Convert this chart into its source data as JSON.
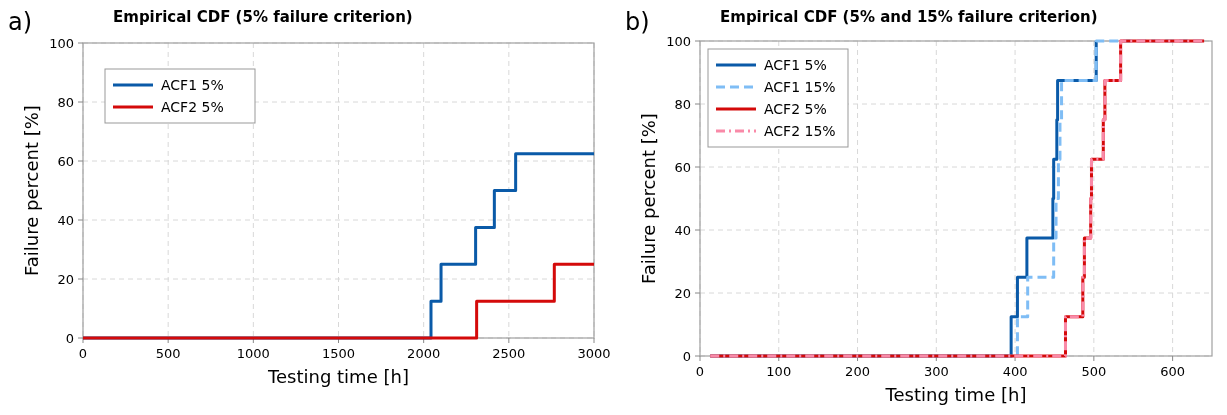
{
  "chart_data": [
    {
      "type": "step",
      "title": "Empirical CDF (5% failure criterion)",
      "xlabel": "Testing time [h]",
      "ylabel": "Failure percent [%]",
      "annotations": [
        "a)"
      ],
      "xlim": [
        0,
        3000
      ],
      "xticks": [
        0,
        500,
        1000,
        1500,
        2000,
        2500,
        3000
      ],
      "ylim": [
        0,
        100
      ],
      "yticks": [
        0,
        20,
        40,
        60,
        80,
        100
      ],
      "grid": true,
      "legend": "top left",
      "marker": "none",
      "series": [
        {
          "name": "ACF1 5%",
          "color": "#0a5aa8",
          "line_style": "solid",
          "x": [
            0,
            2043,
            2102,
            2305,
            2415,
            2540,
            3000
          ],
          "values": [
            0,
            12.5,
            25,
            37.5,
            50,
            62.5,
            62.5
          ]
        },
        {
          "name": "ACF2 5%",
          "color": "#d40a0a",
          "line_style": "solid",
          "x": [
            0,
            2311,
            2767,
            3000
          ],
          "values": [
            0,
            12.5,
            25,
            25
          ]
        }
      ]
    },
    {
      "type": "step",
      "title": "Empirical CDF (5% and 15% failure criterion)",
      "xlabel": "Testing time [h]",
      "ylabel": "Failure percent [%]",
      "annotations": [
        "b)"
      ],
      "xlim": [
        0,
        650
      ],
      "xticks": [
        0,
        100,
        200,
        300,
        400,
        500,
        600
      ],
      "ylim": [
        0,
        100
      ],
      "yticks": [
        0,
        20,
        40,
        60,
        80,
        100
      ],
      "grid": true,
      "legend": "top left",
      "marker": "none",
      "series": [
        {
          "name": "ACF1 5%",
          "color": "#0a5aa8",
          "line_style": "solid",
          "x": [
            13,
            395,
            403,
            415,
            448,
            449,
            453,
            454,
            503
          ],
          "values": [
            0,
            12.5,
            25,
            37.5,
            50,
            62.5,
            75,
            87.5,
            100
          ]
        },
        {
          "name": "ACF1 15%",
          "color": "#7fbdf5",
          "line_style": "dashed",
          "x": [
            13,
            403,
            416,
            449,
            452,
            455,
            457,
            459,
            503,
            640
          ],
          "values": [
            0,
            12.5,
            25,
            37.5,
            50,
            62.5,
            75,
            87.5,
            100,
            100
          ]
        },
        {
          "name": "ACF2 5%",
          "color": "#d40a0a",
          "line_style": "solid",
          "x": [
            13,
            464,
            486,
            488,
            496,
            497,
            512,
            514,
            534,
            640
          ],
          "values": [
            0,
            12.5,
            25,
            37.5,
            50,
            62.5,
            75,
            87.5,
            100,
            100
          ]
        },
        {
          "name": "ACF2 15%",
          "color": "#f98aa8",
          "line_style": "dashdot",
          "x": [
            13,
            464,
            486,
            488,
            496,
            497,
            512,
            514,
            534,
            640
          ],
          "values": [
            0,
            12.5,
            25,
            37.5,
            50,
            62.5,
            75,
            87.5,
            100,
            100
          ]
        }
      ]
    }
  ]
}
